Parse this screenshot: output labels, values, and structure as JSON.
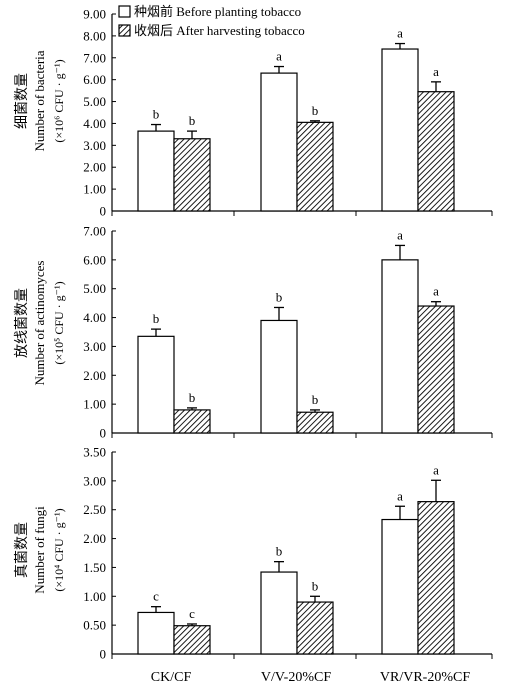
{
  "legend": {
    "before": "种烟前 Before planting tobacco",
    "after": "收烟后 After harvesting tobacco"
  },
  "colors": {
    "line": "#000000",
    "bar_fill": "#ffffff",
    "hatch": "#000000"
  },
  "chart_data": [
    {
      "type": "bar",
      "panel": "bacteria",
      "ylabel_cn": "细菌数量",
      "ylabel_en": "Number of bacteria",
      "ylabel_unit": "(×10⁶ CFU · g⁻¹)",
      "ylim": [
        0,
        9
      ],
      "yticks": [
        "0",
        "1.00",
        "2.00",
        "3.00",
        "4.00",
        "5.00",
        "6.00",
        "7.00",
        "8.00",
        "9.00"
      ],
      "categories": [
        "CK/CF",
        "V/V-20%CF",
        "VR/VR-20%CF"
      ],
      "series": [
        {
          "name": "种烟前 Before planting tobacco",
          "values": [
            3.65,
            6.3,
            7.4
          ],
          "errors": [
            0.3,
            0.3,
            0.25
          ],
          "letters": [
            "b",
            "a",
            "a"
          ]
        },
        {
          "name": "收烟后 After harvesting tobacco",
          "values": [
            3.3,
            4.05,
            5.45
          ],
          "errors": [
            0.35,
            0.07,
            0.45
          ],
          "letters": [
            "b",
            "b",
            "a"
          ]
        }
      ],
      "grid": false,
      "legend_position": "top-left"
    },
    {
      "type": "bar",
      "panel": "actinomyces",
      "ylabel_cn": "放线菌数量",
      "ylabel_en": "Number of actinomyces",
      "ylabel_unit": "(×10⁵ CFU · g⁻¹)",
      "ylim": [
        0,
        7
      ],
      "yticks": [
        "0",
        "1.00",
        "2.00",
        "3.00",
        "4.00",
        "5.00",
        "6.00",
        "7.00"
      ],
      "categories": [
        "CK/CF",
        "V/V-20%CF",
        "VR/VR-20%CF"
      ],
      "series": [
        {
          "name": "种烟前 Before planting tobacco",
          "values": [
            3.35,
            3.9,
            6.0
          ],
          "errors": [
            0.25,
            0.45,
            0.5
          ],
          "letters": [
            "b",
            "b",
            "a"
          ]
        },
        {
          "name": "收烟后 After harvesting tobacco",
          "values": [
            0.8,
            0.72,
            4.4
          ],
          "errors": [
            0.07,
            0.08,
            0.15
          ],
          "letters": [
            "b",
            "b",
            "a"
          ]
        }
      ],
      "grid": false
    },
    {
      "type": "bar",
      "panel": "fungi",
      "ylabel_cn": "真菌数量",
      "ylabel_en": "Number of fungi",
      "ylabel_unit": "(×10⁴ CFU · g⁻¹)",
      "ylim": [
        0,
        3.5
      ],
      "yticks": [
        "0",
        "0.50",
        "1.00",
        "1.50",
        "2.00",
        "2.50",
        "3.00",
        "3.50"
      ],
      "categories": [
        "CK/CF",
        "V/V-20%CF",
        "VR/VR-20%CF"
      ],
      "series": [
        {
          "name": "种烟前 Before planting tobacco",
          "values": [
            0.72,
            1.42,
            2.33
          ],
          "errors": [
            0.1,
            0.18,
            0.23
          ],
          "letters": [
            "c",
            "b",
            "a"
          ]
        },
        {
          "name": "收烟后 After harvesting tobacco",
          "values": [
            0.49,
            0.9,
            2.64
          ],
          "errors": [
            0.03,
            0.1,
            0.37
          ],
          "letters": [
            "c",
            "b",
            "a"
          ]
        }
      ],
      "grid": false
    }
  ]
}
